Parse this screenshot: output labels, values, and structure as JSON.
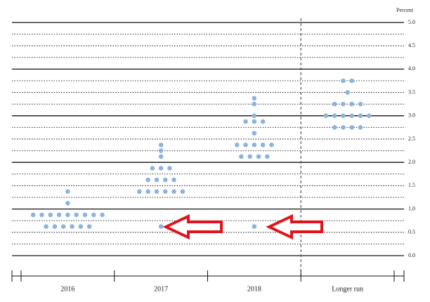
{
  "chart_data": {
    "type": "dot",
    "y_axis_label": "Percent",
    "categories": [
      "2016",
      "2017",
      "2018",
      "Longer run"
    ],
    "dots": [
      [
        1.375,
        1.125,
        0.875,
        0.875,
        0.875,
        0.875,
        0.875,
        0.875,
        0.875,
        0.875,
        0.875,
        0.625,
        0.625,
        0.625,
        0.625,
        0.625,
        0.625
      ],
      [
        2.375,
        2.25,
        2.125,
        1.875,
        1.875,
        1.875,
        1.625,
        1.625,
        1.625,
        1.625,
        1.375,
        1.375,
        1.375,
        1.375,
        1.375,
        1.375,
        0.625
      ],
      [
        3.375,
        3.25,
        3.0,
        2.875,
        2.875,
        2.875,
        2.625,
        2.375,
        2.375,
        2.375,
        2.375,
        2.375,
        2.125,
        2.125,
        2.125,
        2.125,
        0.625
      ],
      [
        3.75,
        3.75,
        3.5,
        3.25,
        3.25,
        3.25,
        3.25,
        3.0,
        3.0,
        3.0,
        3.0,
        3.0,
        3.0,
        2.75,
        2.75,
        2.75,
        2.75
      ]
    ],
    "color": "#8db4dc",
    "ylim": [
      0,
      5
    ],
    "yticks": [
      {
        "value": 0,
        "label": "0.0"
      },
      {
        "value": 0.5,
        "label": "0.5"
      },
      {
        "value": 1,
        "label": "1.0"
      },
      {
        "value": 1.5,
        "label": "1.5"
      },
      {
        "value": 2,
        "label": "2.0"
      },
      {
        "value": 2.5,
        "label": "2.5"
      },
      {
        "value": 3,
        "label": "3.0"
      },
      {
        "value": 3.5,
        "label": "3.5"
      },
      {
        "value": 4,
        "label": "4.0"
      },
      {
        "value": 4.5,
        "label": "4.5"
      },
      {
        "value": 5,
        "label": "5.0"
      }
    ],
    "minor_yticks": [
      0.25,
      0.75,
      1.25,
      1.75,
      2.25,
      2.75,
      3.25,
      3.75,
      4.25,
      4.75
    ]
  }
}
